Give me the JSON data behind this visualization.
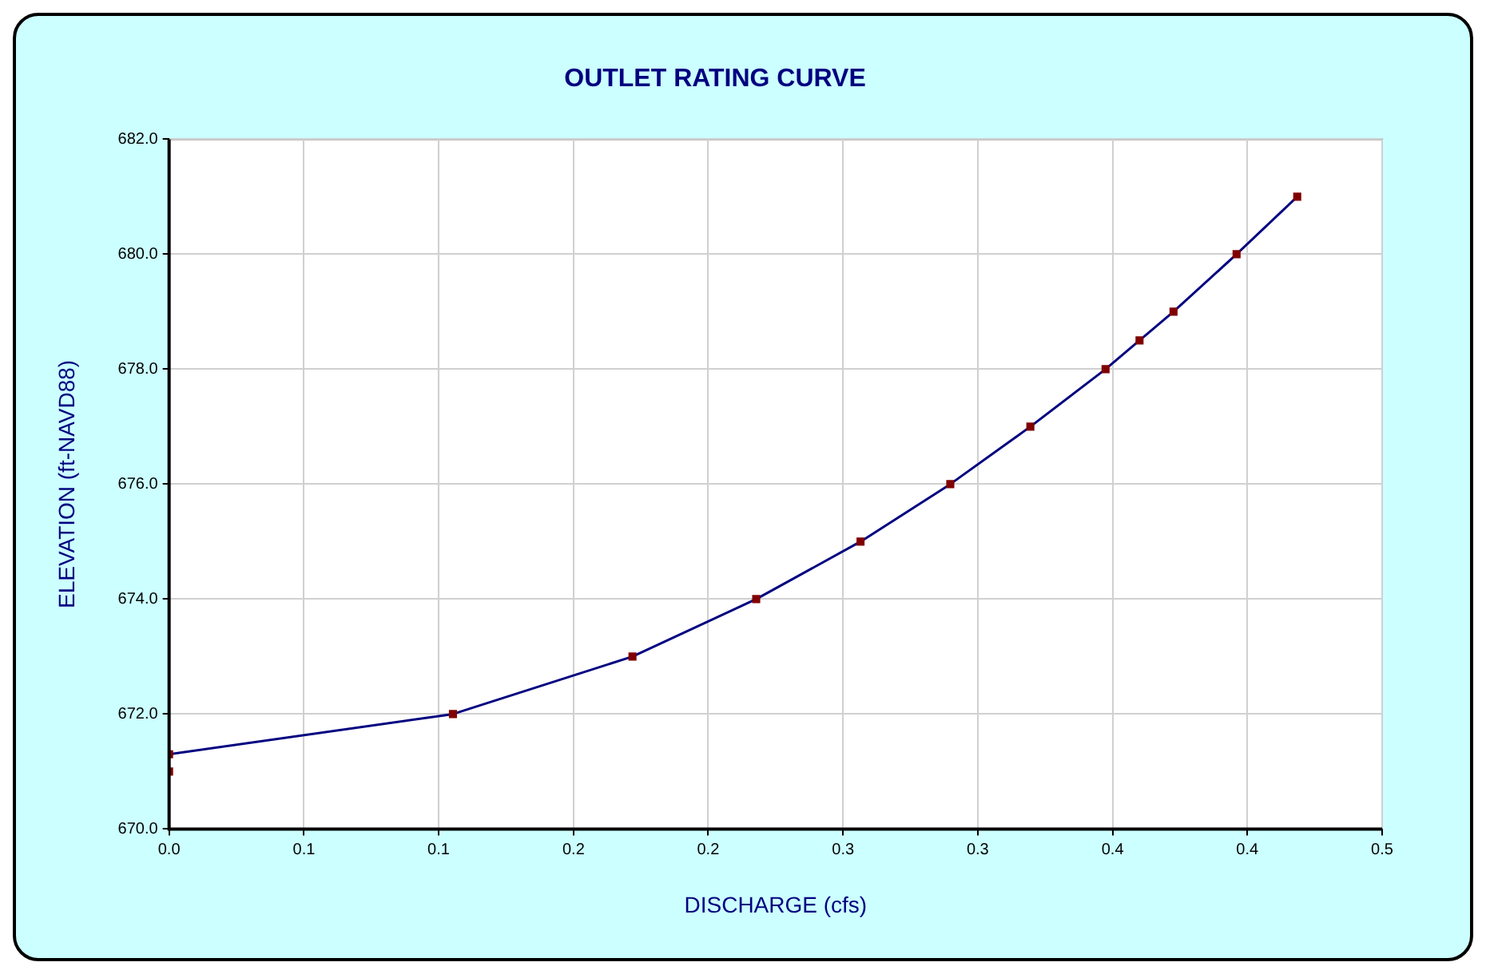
{
  "chart_data": {
    "type": "line",
    "title": "OUTLET RATING CURVE",
    "xlabel": "DISCHARGE (cfs)",
    "ylabel": "ELEVATION (ft-NAVD88)",
    "x": [
      0,
      0,
      0.117,
      0.191,
      0.242,
      0.285,
      0.322,
      0.355,
      0.386,
      0.4,
      0.414,
      0.44,
      0.465
    ],
    "series": [
      {
        "color": "#000080",
        "values": [
          671.0,
          671.3,
          672,
          673,
          674,
          675,
          676,
          677,
          678,
          678.5,
          679,
          680,
          681
        ]
      }
    ],
    "xlim": [
      0,
      0.5
    ],
    "xticks": [
      {
        "value": 0,
        "label": "0.0"
      },
      {
        "value": 0.0556,
        "label": "0.1"
      },
      {
        "value": 0.1111,
        "label": "0.1"
      },
      {
        "value": 0.1667,
        "label": "0.2"
      },
      {
        "value": 0.2222,
        "label": "0.2"
      },
      {
        "value": 0.2778,
        "label": "0.3"
      },
      {
        "value": 0.3333,
        "label": "0.3"
      },
      {
        "value": 0.3889,
        "label": "0.4"
      },
      {
        "value": 0.4444,
        "label": "0.4"
      },
      {
        "value": 0.5,
        "label": "0.5"
      }
    ],
    "ylim": [
      670,
      682
    ],
    "yticks": [
      {
        "value": 670,
        "label": "670.0"
      },
      {
        "value": 672,
        "label": "672.0"
      },
      {
        "value": 674,
        "label": "674.0"
      },
      {
        "value": 676,
        "label": "676.0"
      },
      {
        "value": 678,
        "label": "678.0"
      },
      {
        "value": 680,
        "label": "680.0"
      },
      {
        "value": 682,
        "label": "682.0"
      }
    ],
    "grid": true,
    "legend": false,
    "marker": "square",
    "line_style": "solid"
  }
}
